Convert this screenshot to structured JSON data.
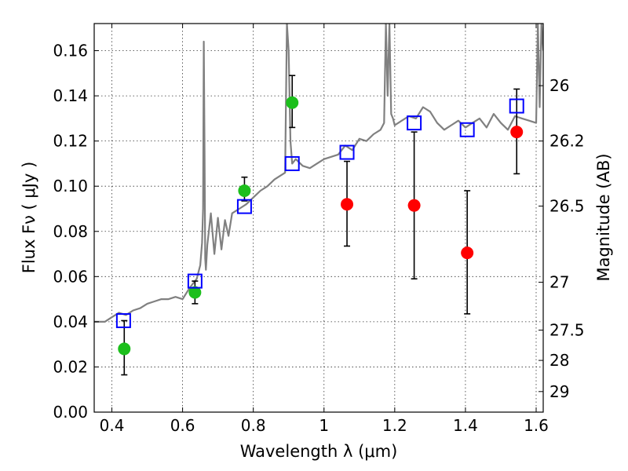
{
  "chart_data": {
    "type": "scatter",
    "title": "",
    "xlabel": "Wavelength  λ (μm)",
    "ylabel": "Flux  Fν  ( μJy )",
    "y2label": "Magnitude (AB)",
    "xlim": [
      0.35,
      1.62
    ],
    "ylim": [
      0.0,
      0.172
    ],
    "grid": true,
    "xticks": [
      0.4,
      0.6,
      0.8,
      1.0,
      1.2,
      1.4,
      1.6
    ],
    "xtick_labels": [
      "0.4",
      "0.6",
      "0.8",
      "1",
      "1.2",
      "1.4",
      "1.6"
    ],
    "yticks": [
      0.0,
      0.02,
      0.04,
      0.06,
      0.08,
      0.1,
      0.12,
      0.14,
      0.16
    ],
    "ytick_labels": [
      "0.00",
      "0.02",
      "0.04",
      "0.06",
      "0.08",
      "0.10",
      "0.12",
      "0.14",
      "0.16"
    ],
    "y2ticks": [
      {
        "flux": 0.1445,
        "label": "26"
      },
      {
        "flux": 0.12,
        "label": "26.2"
      },
      {
        "flux": 0.0912,
        "label": "26.5"
      },
      {
        "flux": 0.0575,
        "label": "27"
      },
      {
        "flux": 0.0363,
        "label": "27.5"
      },
      {
        "flux": 0.0229,
        "label": "28"
      },
      {
        "flux": 0.0091,
        "label": "29"
      }
    ],
    "series": [
      {
        "marker": "line",
        "color": "#808080",
        "x": [
          0.35,
          0.38,
          0.4,
          0.42,
          0.44,
          0.46,
          0.48,
          0.5,
          0.52,
          0.54,
          0.56,
          0.58,
          0.6,
          0.62,
          0.64,
          0.65,
          0.655,
          0.658,
          0.66,
          0.662,
          0.664,
          0.666,
          0.67,
          0.68,
          0.69,
          0.7,
          0.71,
          0.72,
          0.73,
          0.74,
          0.76,
          0.78,
          0.8,
          0.82,
          0.84,
          0.86,
          0.88,
          0.89,
          0.895,
          0.9,
          0.905,
          0.91,
          0.92,
          0.94,
          0.96,
          0.98,
          1.0,
          1.02,
          1.04,
          1.06,
          1.08,
          1.1,
          1.12,
          1.14,
          1.16,
          1.17,
          1.175,
          1.18,
          1.185,
          1.19,
          1.195,
          1.2,
          1.22,
          1.24,
          1.26,
          1.28,
          1.3,
          1.32,
          1.34,
          1.36,
          1.38,
          1.4,
          1.42,
          1.44,
          1.46,
          1.48,
          1.5,
          1.52,
          1.54,
          1.56,
          1.58,
          1.6,
          1.605,
          1.61,
          1.615,
          1.62
        ],
        "y": [
          0.04,
          0.04,
          0.042,
          0.044,
          0.043,
          0.045,
          0.046,
          0.048,
          0.049,
          0.05,
          0.05,
          0.051,
          0.05,
          0.055,
          0.059,
          0.065,
          0.075,
          0.09,
          0.164,
          0.12,
          0.068,
          0.063,
          0.074,
          0.088,
          0.07,
          0.086,
          0.072,
          0.085,
          0.078,
          0.088,
          0.09,
          0.092,
          0.095,
          0.098,
          0.1,
          0.103,
          0.105,
          0.106,
          0.172,
          0.16,
          0.12,
          0.11,
          0.112,
          0.109,
          0.108,
          0.11,
          0.112,
          0.113,
          0.114,
          0.118,
          0.116,
          0.121,
          0.12,
          0.123,
          0.125,
          0.128,
          0.172,
          0.14,
          0.172,
          0.132,
          0.13,
          0.127,
          0.129,
          0.131,
          0.13,
          0.135,
          0.133,
          0.128,
          0.125,
          0.127,
          0.129,
          0.126,
          0.128,
          0.13,
          0.126,
          0.132,
          0.128,
          0.125,
          0.131,
          0.13,
          0.129,
          0.128,
          0.172,
          0.135,
          0.172,
          0.16
        ]
      },
      {
        "marker": "circle",
        "color": "#1cbf1c",
        "x": [
          0.435,
          0.635,
          0.775,
          0.91
        ],
        "y": [
          0.028,
          0.053,
          0.098,
          0.137
        ],
        "yerr_low": [
          0.0165,
          0.048,
          0.0935,
          0.126
        ],
        "yerr_high": [
          0.0405,
          0.058,
          0.104,
          0.149
        ]
      },
      {
        "marker": "circle",
        "color": "#ff0000",
        "x": [
          1.065,
          1.255,
          1.405,
          1.545
        ],
        "y": [
          0.092,
          0.0915,
          0.0705,
          0.124
        ],
        "yerr_low": [
          0.0735,
          0.059,
          0.0435,
          0.1055
        ],
        "yerr_high": [
          0.111,
          0.124,
          0.098,
          0.143
        ]
      },
      {
        "marker": "square",
        "color": "#0000ff",
        "x": [
          0.433,
          0.635,
          0.775,
          0.91,
          1.065,
          1.255,
          1.405,
          1.545
        ],
        "y": [
          0.0405,
          0.058,
          0.091,
          0.11,
          0.115,
          0.128,
          0.125,
          0.1355
        ]
      }
    ]
  }
}
